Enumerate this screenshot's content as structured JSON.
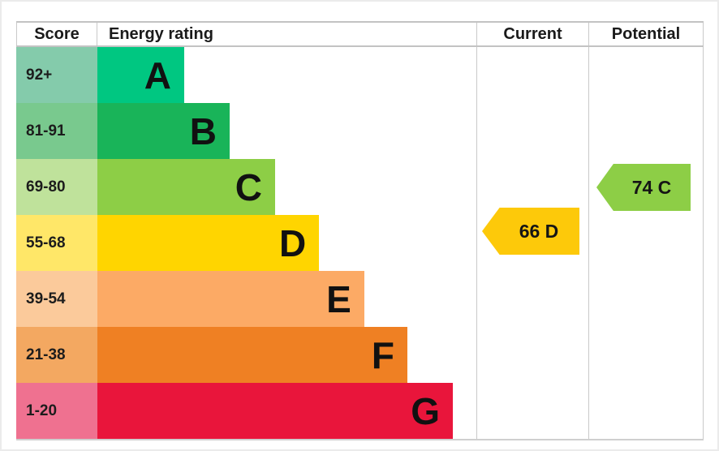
{
  "chart_data": {
    "type": "bar",
    "variant": "epc-energy-rating",
    "headers": {
      "score": "Score",
      "rating": "Energy rating",
      "current": "Current",
      "potential": "Potential"
    },
    "bands": [
      {
        "letter": "A",
        "range": "92+",
        "color": "#00c781",
        "tint": "#84cbab",
        "bar_width_pct": 22.9
      },
      {
        "letter": "B",
        "range": "81-91",
        "color": "#19b459",
        "tint": "#79c98e",
        "bar_width_pct": 34.9
      },
      {
        "letter": "C",
        "range": "69-80",
        "color": "#8dce46",
        "tint": "#bfe29b",
        "bar_width_pct": 46.9
      },
      {
        "letter": "D",
        "range": "55-68",
        "color": "#ffd500",
        "tint": "#ffe768",
        "bar_width_pct": 58.5
      },
      {
        "letter": "E",
        "range": "39-54",
        "color": "#fcaa65",
        "tint": "#fbca9b",
        "bar_width_pct": 70.4
      },
      {
        "letter": "F",
        "range": "21-38",
        "color": "#ef8023",
        "tint": "#f3a861",
        "bar_width_pct": 81.8
      },
      {
        "letter": "G",
        "range": "1-20",
        "color": "#e9153b",
        "tint": "#ef7190",
        "bar_width_pct": 93.8
      }
    ],
    "current": {
      "label": "66 D",
      "score": 66,
      "band": "D",
      "band_index": 3,
      "color": "#fdc90a"
    },
    "potential": {
      "label": "74 C",
      "score": 74,
      "band": "C",
      "band_index": 2,
      "color": "#8dce46"
    }
  }
}
